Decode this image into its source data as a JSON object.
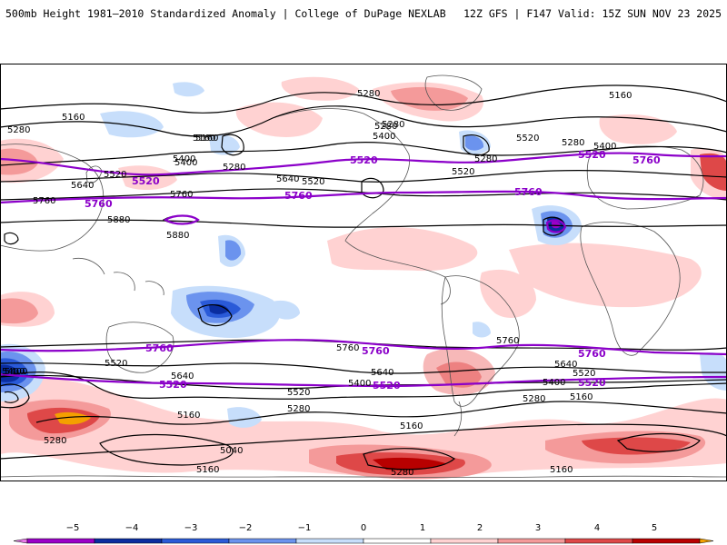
{
  "header": {
    "title": "500mb Height 1981–2010 Standardized Anomaly | College of DuPage NEXLAB",
    "run_info": "12Z GFS | F147 Valid: 15Z SUN NOV 23 2025"
  },
  "map": {
    "contour_labels_black": [
      "5280",
      "5160",
      "5280",
      "5160",
      "5280",
      "5400",
      "5280",
      "5400",
      "5520",
      "5160",
      "5280",
      "5400",
      "5640",
      "5520",
      "5760",
      "5880",
      "5880",
      "5520",
      "5640",
      "5760",
      "5520",
      "5400",
      "5280",
      "5280",
      "5160",
      "5400",
      "5520",
      "5640",
      "5400",
      "5520",
      "5640",
      "5280",
      "5160",
      "5040",
      "5160",
      "5280",
      "5160",
      "5280",
      "5160",
      "5280",
      "5400",
      "5640",
      "5760",
      "5400",
      "5520",
      "5160",
      "5760"
    ],
    "contour_labels_purple": [
      "5520",
      "5520",
      "5760",
      "5760",
      "5760",
      "5520",
      "5760",
      "5760",
      "5520",
      "5520",
      "5520",
      "5760",
      "5760"
    ],
    "colors": {
      "land_outline": "#555555",
      "contour_black": "#000000",
      "contour_purple": "#8b00c9"
    }
  },
  "colorbar": {
    "ticks": [
      "−5",
      "−4",
      "−3",
      "−2",
      "−1",
      "0",
      "1",
      "2",
      "3",
      "4",
      "5"
    ],
    "colors": [
      "#e879e8",
      "#9b00c8",
      "#0a2da0",
      "#2a5ad8",
      "#6b93ee",
      "#c7defb",
      "#ffffff",
      "#ffd2d2",
      "#f49a9a",
      "#de4848",
      "#b80000",
      "#f4a000"
    ]
  }
}
